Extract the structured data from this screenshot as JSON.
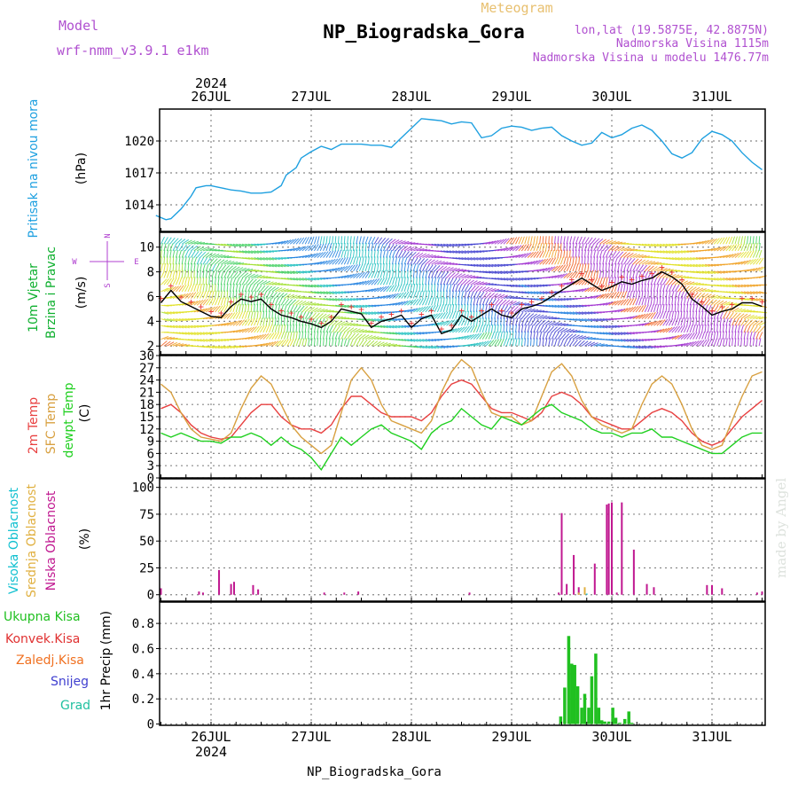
{
  "header": {
    "model_label": "Model",
    "model_name": "wrf-nmm_v3.9.1 e1km",
    "title": "NP_Biogradska_Gora",
    "meteogram": "Meteogram",
    "lonlat": "lon,lat (19.5875E, 42.8875N)",
    "altitude": "Nadmorska Visina 1115m",
    "model_altitude": "Nadmorska Visina u modelu 1476.77m",
    "year_top": "2024",
    "year_bottom": "2024",
    "footer": "NP_Biogradska_Gora",
    "watermark": "made by Angel"
  },
  "days": [
    "26JUL",
    "27JUL",
    "28JUL",
    "29JUL",
    "30JUL",
    "31JUL"
  ],
  "colors": {
    "pressure": "#1ea0e0",
    "temp2m": "#e84040",
    "sfc": "#d8a040",
    "dew": "#20d020",
    "high_cloud": "#10c0d0",
    "mid_cloud": "#e0b040",
    "low_cloud": "#c01890",
    "precip": "#20c020",
    "convective": "#e03030",
    "freezing": "#f07020",
    "snow": "#4040d0",
    "grad": "#20c0a0",
    "wind_label": "#10b030",
    "dir_label": "#b040d0"
  },
  "chart_data": [
    {
      "type": "line",
      "panel": "pressure",
      "ylabel_left": "Pritisak na nivou mora",
      "ylabel_unit": "(hPa)",
      "ylim": [
        1011.5,
        1023
      ],
      "yticks": [
        1014,
        1017,
        1020
      ],
      "grid": true,
      "x_unit": "days since 26JUL 00",
      "series": [
        {
          "x": [
            -0.55,
            -0.45,
            -0.4,
            -0.3,
            -0.2,
            -0.15,
            -0.05,
            0.0,
            0.1,
            0.2,
            0.3,
            0.4,
            0.5,
            0.6,
            0.7,
            0.75,
            0.85,
            0.9,
            1.0,
            1.1,
            1.2,
            1.3,
            1.4,
            1.5,
            1.6,
            1.7,
            1.8,
            1.9,
            2.0,
            2.1,
            2.2,
            2.3,
            2.4,
            2.5,
            2.6,
            2.7,
            2.8,
            2.9,
            3.0,
            3.1,
            3.2,
            3.3,
            3.4,
            3.5,
            3.6,
            3.7,
            3.8,
            3.9,
            4.0,
            4.1,
            4.2,
            4.3,
            4.4,
            4.5,
            4.6,
            4.7,
            4.8,
            4.9,
            5.0,
            5.1,
            5.2,
            5.3,
            5.4,
            5.5
          ],
          "values": [
            1013.0,
            1012.6,
            1012.7,
            1013.6,
            1014.8,
            1015.6,
            1015.8,
            1015.8,
            1015.6,
            1015.4,
            1015.3,
            1015.1,
            1015.1,
            1015.2,
            1015.8,
            1016.8,
            1017.5,
            1018.4,
            1019.0,
            1019.5,
            1019.2,
            1019.7,
            1019.7,
            1019.7,
            1019.6,
            1019.6,
            1019.4,
            1020.3,
            1021.2,
            1022.1,
            1022.0,
            1021.9,
            1021.6,
            1021.8,
            1021.7,
            1020.3,
            1020.5,
            1021.2,
            1021.4,
            1021.3,
            1021.0,
            1021.2,
            1021.3,
            1020.5,
            1020.0,
            1019.6,
            1019.8,
            1020.8,
            1020.3,
            1020.6,
            1021.2,
            1021.5,
            1021.0,
            1020.0,
            1018.8,
            1018.4,
            1018.9,
            1020.2,
            1020.9,
            1020.6,
            1020.0,
            1018.9,
            1018.0,
            1017.3
          ],
          "color": "#1ea0e0"
        }
      ]
    },
    {
      "type": "line",
      "panel": "wind",
      "ylabel_left": "10m Vjetar",
      "ylabel_left2": "Brzina i Pravac",
      "ylabel_unit": "(m/s)",
      "compass": {
        "n": "N",
        "w": "W",
        "e": "E",
        "s": "S"
      },
      "ylim": [
        1.3,
        11.2
      ],
      "yticks": [
        2,
        4,
        6,
        8,
        10
      ],
      "grid": true,
      "series": [
        {
          "x": [
            -0.5,
            -0.4,
            -0.3,
            -0.2,
            -0.1,
            0.0,
            0.1,
            0.2,
            0.3,
            0.4,
            0.5,
            0.6,
            0.7,
            0.8,
            0.9,
            1.0,
            1.1,
            1.2,
            1.3,
            1.4,
            1.5,
            1.6,
            1.7,
            1.8,
            1.9,
            2.0,
            2.1,
            2.2,
            2.3,
            2.4,
            2.5,
            2.6,
            2.7,
            2.8,
            2.9,
            3.0,
            3.1,
            3.2,
            3.3,
            3.4,
            3.5,
            3.6,
            3.7,
            3.8,
            3.9,
            4.0,
            4.1,
            4.2,
            4.3,
            4.4,
            4.5,
            4.6,
            4.7,
            4.8,
            4.9,
            5.0,
            5.1,
            5.2,
            5.3,
            5.4,
            5.5
          ],
          "values": [
            5.5,
            6.5,
            5.6,
            5.2,
            4.8,
            4.4,
            4.3,
            5.2,
            5.8,
            5.6,
            5.8,
            5.0,
            4.5,
            4.3,
            4.0,
            3.8,
            3.5,
            4.0,
            5.0,
            4.8,
            4.6,
            3.5,
            4.0,
            4.2,
            4.5,
            3.5,
            4.2,
            4.5,
            3.0,
            3.3,
            4.5,
            4.0,
            4.5,
            5.0,
            4.5,
            4.3,
            5.0,
            5.2,
            5.5,
            6.0,
            6.5,
            7.0,
            7.5,
            7.0,
            6.5,
            6.8,
            7.2,
            7.0,
            7.3,
            7.5,
            8.0,
            7.6,
            7.0,
            5.8,
            5.2,
            4.5,
            4.8,
            5.0,
            5.5,
            5.5,
            5.2
          ],
          "color": "#000000"
        }
      ]
    },
    {
      "type": "line",
      "panel": "temperature",
      "ylabel_left": "2m Temp",
      "ylabel_left2": "SFC Temp",
      "ylabel_left3": "dewpt Temp",
      "ylabel_unit": "(C)",
      "ylim": [
        0,
        30
      ],
      "yticks": [
        0,
        3,
        6,
        9,
        12,
        15,
        18,
        21,
        24,
        27,
        30
      ],
      "grid": true,
      "series": [
        {
          "name": "2m Temp",
          "x": [
            -0.5,
            -0.4,
            -0.3,
            -0.2,
            -0.1,
            0.0,
            0.1,
            0.2,
            0.3,
            0.4,
            0.5,
            0.6,
            0.7,
            0.8,
            0.9,
            1.0,
            1.1,
            1.2,
            1.3,
            1.4,
            1.5,
            1.6,
            1.7,
            1.8,
            1.9,
            2.0,
            2.1,
            2.2,
            2.3,
            2.4,
            2.5,
            2.6,
            2.7,
            2.8,
            2.9,
            3.0,
            3.1,
            3.2,
            3.3,
            3.4,
            3.5,
            3.6,
            3.7,
            3.8,
            3.9,
            4.0,
            4.1,
            4.2,
            4.3,
            4.4,
            4.5,
            4.6,
            4.7,
            4.8,
            4.9,
            5.0,
            5.1,
            5.2,
            5.3,
            5.4,
            5.5
          ],
          "values": [
            17,
            18,
            16,
            13,
            11,
            10,
            9.5,
            10,
            13,
            16,
            18,
            18,
            15,
            13,
            12,
            12,
            11,
            13,
            17,
            20,
            20,
            18,
            16,
            15,
            15,
            15,
            14,
            16,
            20,
            23,
            24,
            23,
            20,
            17,
            16,
            16,
            15,
            14,
            16,
            20,
            21,
            20,
            18,
            15,
            14,
            13,
            12,
            12,
            14,
            16,
            17,
            16,
            14,
            11,
            9,
            8,
            9,
            12,
            15,
            17,
            19
          ],
          "color": "#e84040"
        },
        {
          "name": "SFC Temp",
          "x": [
            -0.5,
            -0.4,
            -0.3,
            -0.2,
            -0.1,
            0.0,
            0.1,
            0.2,
            0.3,
            0.4,
            0.5,
            0.6,
            0.7,
            0.8,
            0.9,
            1.0,
            1.1,
            1.2,
            1.3,
            1.4,
            1.5,
            1.6,
            1.7,
            1.8,
            1.9,
            2.0,
            2.1,
            2.2,
            2.3,
            2.4,
            2.5,
            2.6,
            2.7,
            2.8,
            2.9,
            3.0,
            3.1,
            3.2,
            3.3,
            3.4,
            3.5,
            3.6,
            3.7,
            3.8,
            3.9,
            4.0,
            4.1,
            4.2,
            4.3,
            4.4,
            4.5,
            4.6,
            4.7,
            4.8,
            4.9,
            5.0,
            5.1,
            5.2,
            5.3,
            5.4,
            5.5
          ],
          "values": [
            23,
            21,
            16,
            12,
            10,
            9.5,
            9,
            11,
            17,
            22,
            25,
            23,
            18,
            13,
            10,
            8,
            6,
            8,
            16,
            24,
            27,
            24,
            18,
            14,
            13,
            12,
            11,
            14,
            21,
            26,
            29,
            27,
            21,
            16,
            15,
            15,
            13,
            14,
            20,
            26,
            28,
            25,
            19,
            15,
            13,
            12,
            11,
            12,
            18,
            23,
            25,
            23,
            18,
            12,
            8,
            7,
            8,
            14,
            20,
            25,
            26
          ],
          "color": "#d8a040"
        },
        {
          "name": "dewpt Temp",
          "x": [
            -0.5,
            -0.4,
            -0.3,
            -0.2,
            -0.1,
            0.0,
            0.1,
            0.2,
            0.3,
            0.4,
            0.5,
            0.6,
            0.7,
            0.8,
            0.9,
            1.0,
            1.1,
            1.2,
            1.3,
            1.4,
            1.5,
            1.6,
            1.7,
            1.8,
            1.9,
            2.0,
            2.1,
            2.2,
            2.3,
            2.4,
            2.5,
            2.6,
            2.7,
            2.8,
            2.9,
            3.0,
            3.1,
            3.2,
            3.3,
            3.4,
            3.5,
            3.6,
            3.7,
            3.8,
            3.9,
            4.0,
            4.1,
            4.2,
            4.3,
            4.4,
            4.5,
            4.6,
            4.7,
            4.8,
            4.9,
            5.0,
            5.1,
            5.2,
            5.3,
            5.4,
            5.5
          ],
          "values": [
            11,
            10,
            11,
            10,
            9,
            9,
            8.5,
            10,
            10,
            11,
            10,
            8,
            10,
            8,
            7,
            5,
            2,
            6,
            10,
            8,
            10,
            12,
            13,
            11,
            10,
            9,
            7,
            11,
            13,
            14,
            17,
            15,
            13,
            12,
            15,
            14,
            13,
            15,
            17,
            18,
            16,
            15,
            14,
            12,
            11,
            11,
            10,
            11,
            11,
            12,
            10,
            10,
            9,
            8,
            7,
            6,
            6,
            8,
            10,
            11,
            11
          ],
          "color": "#20d020"
        }
      ]
    },
    {
      "type": "bar",
      "panel": "clouds",
      "ylabel_left": "Visoka Oblacnost",
      "ylabel_left2": "Srednja Oblacnost",
      "ylabel_left3": "Niska Oblacnost",
      "ylabel_unit": "(%)",
      "ylim": [
        -6,
        108
      ],
      "yticks": [
        0,
        25,
        50,
        75,
        100
      ],
      "grid": true,
      "series": [
        {
          "name": "Niska Oblacnost",
          "x": [
            -0.5,
            -0.12,
            -0.08,
            0.08,
            0.2,
            0.23,
            0.42,
            0.47,
            1.13,
            1.33,
            1.47,
            2.58,
            3.47,
            3.5,
            3.55,
            3.62,
            3.67,
            3.83,
            3.95,
            3.97,
            4.0,
            4.05,
            4.1,
            4.22,
            4.35,
            4.42,
            4.95,
            5.0,
            5.1,
            5.45,
            5.5
          ],
          "values": [
            6,
            3,
            2,
            23,
            10,
            12,
            9,
            5,
            2,
            2,
            3,
            2,
            2,
            76,
            10,
            37,
            7,
            29,
            84,
            85,
            86,
            2,
            86,
            42,
            10,
            7,
            9,
            9,
            6,
            2,
            3
          ],
          "color": "#c01890"
        },
        {
          "name": "Srednja Oblacnost",
          "x": [
            3.67,
            3.73
          ],
          "values": [
            2,
            7
          ],
          "color": "#e0b040"
        },
        {
          "name": "Visoka Oblacnost",
          "x": [
            3.75
          ],
          "values": [
            1
          ],
          "color": "#10c0d0"
        }
      ]
    },
    {
      "type": "bar",
      "panel": "precipitation",
      "legend": [
        "Ukupna Kisa",
        "Konvek.Kisa",
        "Zaledj.Kisa",
        "Snijeg",
        "Grad"
      ],
      "ylabel_left": "1hr Precip",
      "ylabel_unit": "(mm)",
      "ylim": [
        -0.01,
        0.97
      ],
      "yticks": [
        0,
        0.2,
        0.4,
        0.6,
        0.8
      ],
      "grid": true,
      "series": [
        {
          "name": "Ukupna Kisa",
          "x": [
            3.49,
            3.53,
            3.57,
            3.6,
            3.63,
            3.66,
            3.7,
            3.73,
            3.77,
            3.8,
            3.84,
            3.87,
            3.9,
            3.93,
            3.97,
            4.01,
            4.04,
            4.08,
            4.13,
            4.17,
            4.2
          ],
          "values": [
            0.06,
            0.29,
            0.7,
            0.48,
            0.47,
            0.3,
            0.13,
            0.24,
            0.13,
            0.38,
            0.56,
            0.13,
            0.03,
            0.02,
            0.02,
            0.13,
            0.05,
            0.01,
            0.04,
            0.1,
            0.01
          ],
          "color": "#20c020"
        }
      ]
    }
  ]
}
